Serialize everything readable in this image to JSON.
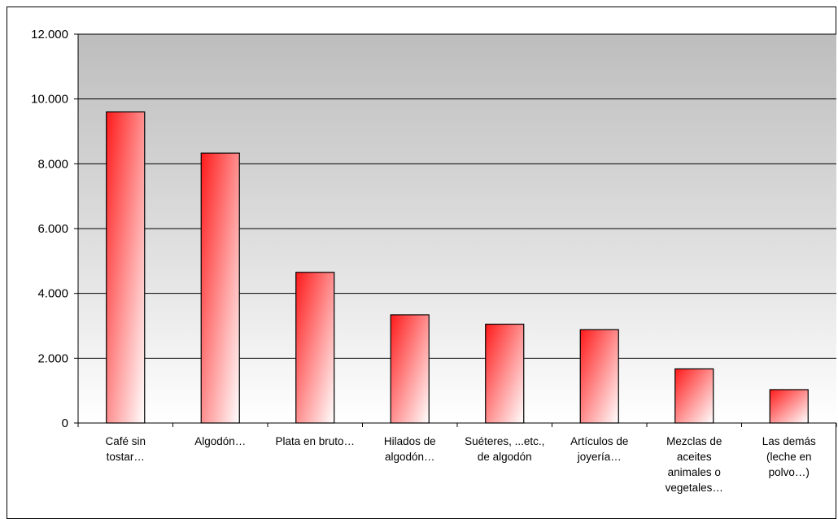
{
  "chart_data": {
    "type": "bar",
    "categories": [
      [
        "Café sin",
        "tostar…"
      ],
      [
        "Algodón…"
      ],
      [
        "Plata en bruto…"
      ],
      [
        "Hilados de",
        "algodón…"
      ],
      [
        "Suéteres, ...etc.,",
        "de algodón"
      ],
      [
        "Artículos de",
        "joyería…"
      ],
      [
        "Mezclas de",
        "aceites",
        "animales o",
        "vegetales…"
      ],
      [
        "Las demás",
        "(leche en",
        "polvo…)"
      ]
    ],
    "values": [
      9600,
      8330,
      4650,
      3340,
      3050,
      2880,
      1670,
      1030
    ],
    "ylim": [
      0,
      12000
    ],
    "yticks": [
      0,
      2000,
      4000,
      6000,
      8000,
      10000,
      12000
    ],
    "ytick_labels": [
      "0",
      "2.000",
      "4.000",
      "6.000",
      "8.000",
      "10.000",
      "12.000"
    ],
    "title": "",
    "xlabel": "",
    "ylabel": "",
    "grid": true,
    "colors": {
      "bar_dark": "#ff1a1a",
      "bar_light": "#ffffff",
      "plot_top": "#bdbdbd",
      "plot_bottom": "#ffffff"
    }
  }
}
